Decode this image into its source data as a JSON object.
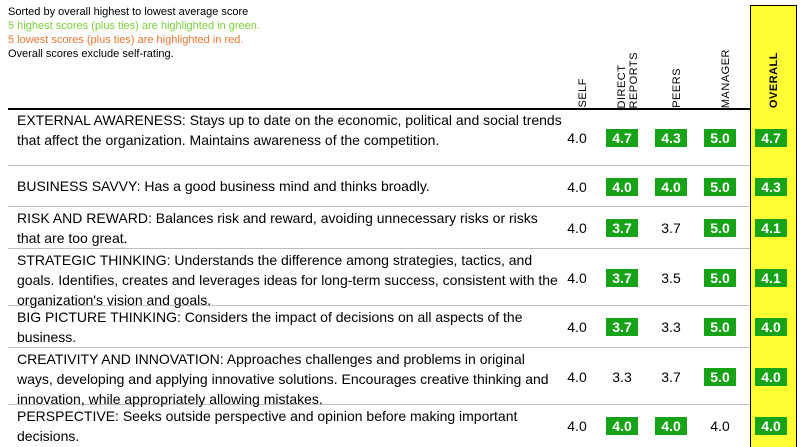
{
  "notes": {
    "sorted": "Sorted by overall highest to lowest average score",
    "green": "5 highest scores (plus ties) are highlighted in green.",
    "red": "5 lowest scores (plus ties) are highlighted in red.",
    "exclude": "Overall scores exclude self-rating."
  },
  "columns": {
    "self": "SELF",
    "direct": "DIRECT\nREPORTS",
    "peers": "PEERS",
    "manager": "MANAGER",
    "overall": "OVERALL"
  },
  "rows": [
    {
      "title": "EXTERNAL AWARENESS: ",
      "desc": "Stays up to date on the economic, political and social trends that affect the organization. Maintains awareness of the competition.",
      "self": "4.0",
      "direct": "4.7",
      "peers": "4.3",
      "manager": "5.0",
      "overall": "4.7",
      "hl": {
        "self": "",
        "direct": "hi",
        "peers": "hi",
        "manager": "hi",
        "overall": "hi"
      }
    },
    {
      "title": "BUSINESS SAVVY: ",
      "desc": "Has a good business mind and thinks broadly.",
      "self": "4.0",
      "direct": "4.0",
      "peers": "4.0",
      "manager": "5.0",
      "overall": "4.3",
      "hl": {
        "self": "",
        "direct": "hi",
        "peers": "hi",
        "manager": "hi",
        "overall": "hi"
      }
    },
    {
      "title": "RISK AND REWARD: ",
      "desc": "Balances risk and reward, avoiding unnecessary risks or risks that are too great.",
      "self": "4.0",
      "direct": "3.7",
      "peers": "3.7",
      "manager": "5.0",
      "overall": "4.1",
      "hl": {
        "self": "",
        "direct": "hi",
        "peers": "",
        "manager": "hi",
        "overall": "hi"
      }
    },
    {
      "title": "STRATEGIC THINKING: ",
      "desc": "Understands the difference among strategies, tactics, and goals. Identifies, creates and leverages ideas for long-term success, consistent with the organization's vision and goals.",
      "self": "4.0",
      "direct": "3.7",
      "peers": "3.5",
      "manager": "5.0",
      "overall": "4.1",
      "hl": {
        "self": "",
        "direct": "hi",
        "peers": "",
        "manager": "hi",
        "overall": "hi"
      }
    },
    {
      "title": "BIG PICTURE THINKING: ",
      "desc": "Considers the impact of decisions on all aspects of the business.",
      "self": "4.0",
      "direct": "3.7",
      "peers": "3.3",
      "manager": "5.0",
      "overall": "4.0",
      "hl": {
        "self": "",
        "direct": "hi",
        "peers": "",
        "manager": "hi",
        "overall": "hi"
      }
    },
    {
      "title": "CREATIVITY AND INNOVATION: ",
      "desc": "Approaches challenges and problems in original ways, developing and applying innovative solutions. Encourages creative thinking and innovation, while appropriately allowing mistakes.",
      "self": "4.0",
      "direct": "3.3",
      "peers": "3.7",
      "manager": "5.0",
      "overall": "4.0",
      "hl": {
        "self": "",
        "direct": "",
        "peers": "",
        "manager": "hi",
        "overall": "hi"
      }
    },
    {
      "title": "PERSPECTIVE: ",
      "desc": "Seeks outside perspective and opinion before making important decisions.",
      "self": "4.0",
      "direct": "4.0",
      "peers": "4.0",
      "manager": "4.0",
      "overall": "4.0",
      "hl": {
        "self": "",
        "direct": "hi",
        "peers": "hi",
        "manager": "",
        "overall": "hi"
      }
    }
  ]
}
